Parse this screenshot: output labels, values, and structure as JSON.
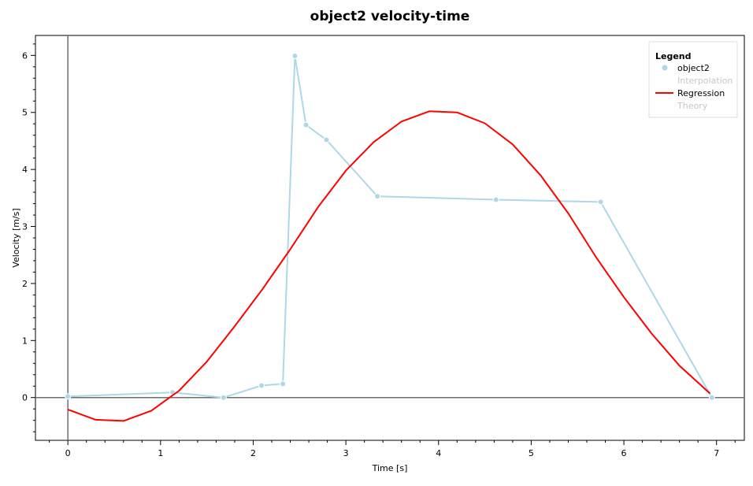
{
  "chart_data": {
    "type": "line",
    "title": "object2 velocity-time",
    "xlabel": "Time [s]",
    "ylabel": "Velocity [m/s]",
    "xlim": [
      -0.35,
      7.3
    ],
    "ylim": [
      -0.75,
      6.35
    ],
    "xticks": [
      0,
      1,
      2,
      3,
      4,
      5,
      6,
      7
    ],
    "yticks": [
      0,
      1,
      2,
      3,
      4,
      5,
      6
    ],
    "grid": false,
    "legend": {
      "title": "Legend",
      "position": "top-right",
      "entries": [
        {
          "label": "object2",
          "style": "marker",
          "color": "#add8e6",
          "muted": false
        },
        {
          "label": "Interpolation",
          "style": "none",
          "color": "#c8c8c8",
          "muted": true
        },
        {
          "label": "Regression",
          "style": "line",
          "color": "#ff0000",
          "muted": false
        },
        {
          "label": "Theory",
          "style": "none",
          "color": "#c8c8c8",
          "muted": true
        }
      ]
    },
    "series": [
      {
        "name": "object2",
        "color": "#add8e6",
        "markers": true,
        "x": [
          0.0,
          1.13,
          1.68,
          2.09,
          2.32,
          2.45,
          2.57,
          2.79,
          3.34,
          4.62,
          5.75,
          6.95
        ],
        "y": [
          0.02,
          0.09,
          0.0,
          0.21,
          0.24,
          5.99,
          4.78,
          4.52,
          3.53,
          3.47,
          3.43,
          0.0
        ]
      },
      {
        "name": "Regression",
        "color": "#ff0000",
        "markers": false,
        "x": [
          0.0,
          0.3,
          0.6,
          0.9,
          1.2,
          1.5,
          1.8,
          2.1,
          2.4,
          2.7,
          3.0,
          3.3,
          3.6,
          3.9,
          4.2,
          4.5,
          4.8,
          5.1,
          5.4,
          5.7,
          6.0,
          6.3,
          6.6,
          6.93
        ],
        "y": [
          -0.21,
          -0.39,
          -0.41,
          -0.23,
          0.12,
          0.63,
          1.25,
          1.9,
          2.6,
          3.34,
          3.98,
          4.48,
          4.84,
          5.02,
          5.0,
          4.81,
          4.44,
          3.9,
          3.23,
          2.46,
          1.76,
          1.12,
          0.56,
          0.07
        ]
      }
    ]
  }
}
